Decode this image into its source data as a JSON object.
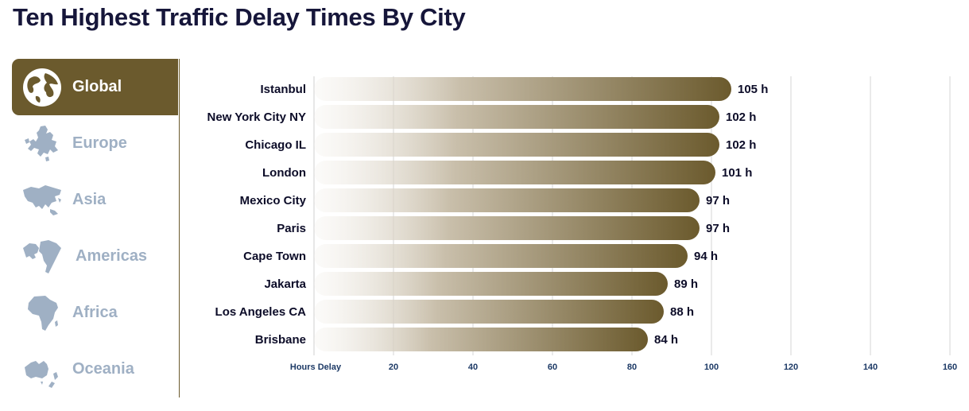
{
  "page": {
    "title": "Ten Highest Traffic Delay Times By City"
  },
  "sidebar": {
    "items": [
      {
        "label": "Global",
        "icon": "globe-icon",
        "active": true
      },
      {
        "label": "Europe",
        "icon": "europe-map-icon",
        "active": false
      },
      {
        "label": "Asia",
        "icon": "asia-map-icon",
        "active": false
      },
      {
        "label": "Americas",
        "icon": "americas-map-icon",
        "active": false
      },
      {
        "label": "Africa",
        "icon": "africa-map-icon",
        "active": false
      },
      {
        "label": "Oceania",
        "icon": "oceania-map-icon",
        "active": false
      }
    ]
  },
  "colors": {
    "accent": "#6b5a2d",
    "bar_start": "#f4f1ec",
    "bar_end": "#6b5a2d",
    "inactive_icon": "#9fb0c4",
    "title": "#16163a",
    "tick": "#1d3a66"
  },
  "chart_data": {
    "type": "bar",
    "orientation": "horizontal",
    "categories": [
      "Istanbul",
      "New York City NY",
      "Chicago IL",
      "London",
      "Mexico City",
      "Paris",
      "Cape Town",
      "Jakarta",
      "Los Angeles CA",
      "Brisbane"
    ],
    "values": [
      105,
      102,
      102,
      101,
      97,
      97,
      94,
      89,
      88,
      84
    ],
    "value_labels": [
      "105 h",
      "102 h",
      "102 h",
      "101 h",
      "97 h",
      "97 h",
      "94 h",
      "89 h",
      "88 h",
      "84 h"
    ],
    "xlabel": "Hours Delay",
    "xticks": [
      20,
      40,
      60,
      80,
      100,
      120,
      140,
      160
    ],
    "xtick_labels": [
      "20",
      "40",
      "60",
      "80",
      "100",
      "120",
      "140",
      "160"
    ],
    "xlim": [
      0,
      160
    ],
    "grid": true
  }
}
